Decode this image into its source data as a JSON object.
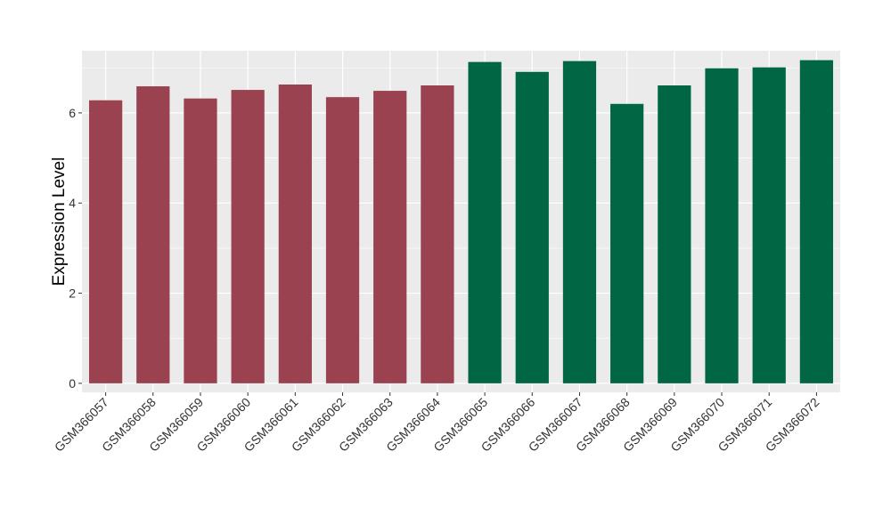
{
  "chart_data": {
    "type": "bar",
    "title": "",
    "xlabel": "",
    "ylabel": "Expression Level",
    "ylim": [
      -0.2,
      7.38
    ],
    "yticks": [
      0,
      2,
      4,
      6
    ],
    "grid": true,
    "legend": "none",
    "categories": [
      "GSM366057",
      "GSM366058",
      "GSM366059",
      "GSM366060",
      "GSM366061",
      "GSM366062",
      "GSM366063",
      "GSM366064",
      "GSM366065",
      "GSM366066",
      "GSM366067",
      "GSM366068",
      "GSM366069",
      "GSM366070",
      "GSM366071",
      "GSM366072"
    ],
    "values": [
      6.28,
      6.59,
      6.32,
      6.51,
      6.63,
      6.35,
      6.49,
      6.61,
      7.13,
      6.91,
      7.15,
      6.2,
      6.61,
      6.99,
      7.01,
      7.17
    ],
    "groups": [
      0,
      0,
      0,
      0,
      0,
      0,
      0,
      0,
      1,
      1,
      1,
      1,
      1,
      1,
      1,
      1
    ],
    "group_colors": [
      "#9a4250",
      "#016644"
    ],
    "panel_background": "#ebebeb",
    "grid_color": "#ffffff"
  }
}
